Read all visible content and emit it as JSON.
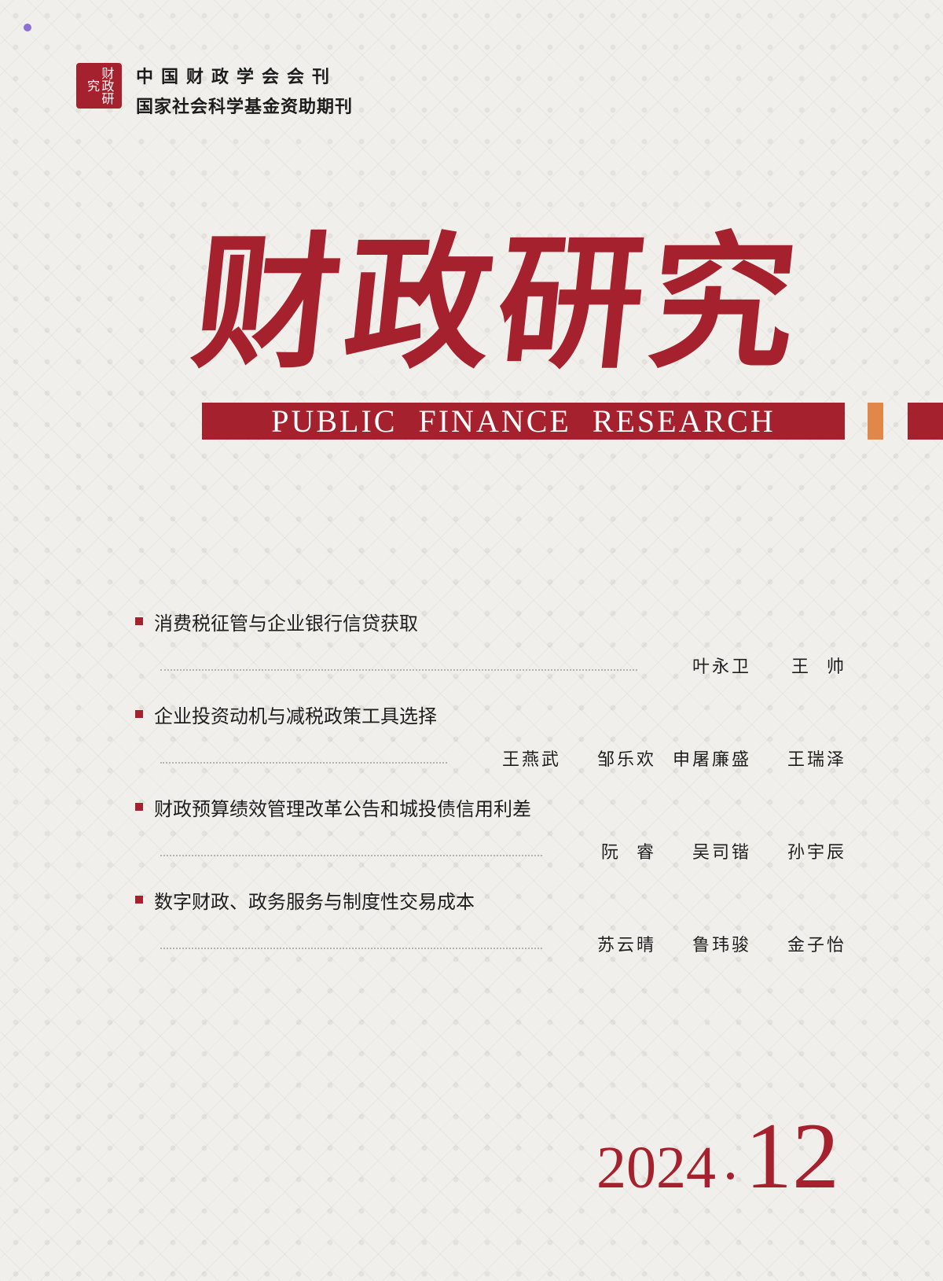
{
  "publisher": {
    "seal_text": "财政研究",
    "line1": "中国财政学会会刊",
    "line2": "国家社会科学基金资助期刊"
  },
  "masthead": {
    "title_cn": "财政研究",
    "title_en": "PUBLIC FINANCE RESEARCH"
  },
  "articles": [
    {
      "title": "消费税征管与企业银行信贷获取",
      "authors": [
        "叶永卫",
        "王  帅"
      ]
    },
    {
      "title": "企业投资动机与减税政策工具选择",
      "authors": [
        "王燕武",
        "邹乐欢",
        "申屠廉盛",
        "王瑞泽"
      ]
    },
    {
      "title": "财政预算绩效管理改革公告和城投债信用利差",
      "authors": [
        "阮  睿",
        "吴司锴",
        "孙宇辰"
      ]
    },
    {
      "title": "数字财政、政务服务与制度性交易成本",
      "authors": [
        "苏云晴",
        "鲁玮骏",
        "金子怡"
      ]
    }
  ],
  "issue": {
    "year": "2024",
    "number": "12"
  },
  "colors": {
    "brand_red": "#a4212d",
    "accent_orange": "#e1874a",
    "background": "#f1efeb"
  }
}
